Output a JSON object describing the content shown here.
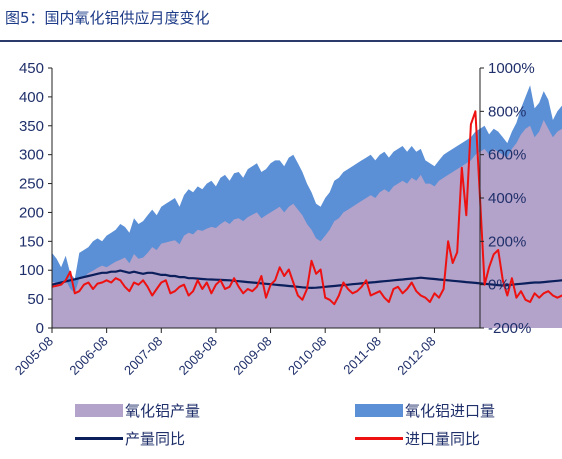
{
  "figure": {
    "title": "图5：国内氧化铝供应月度变化"
  },
  "chart_data": {
    "type": "area",
    "x_ticks": [
      "2005-08",
      "2006-08",
      "2007-08",
      "2008-08",
      "2009-08",
      "2010-08",
      "2011-08",
      "2012-08"
    ],
    "x_start": "2005-08",
    "x_end": "2013-06",
    "left_axis": {
      "ticks": [
        0,
        50,
        100,
        150,
        200,
        250,
        300,
        350,
        400,
        450
      ],
      "ylim": [
        0,
        450
      ]
    },
    "right_axis": {
      "ticks": [
        "-200%",
        "0%",
        "200%",
        "400%",
        "600%",
        "800%",
        "1000%"
      ],
      "ylim": [
        -200,
        1000
      ]
    },
    "legend_placement": "bottom",
    "grid": false,
    "series": [
      {
        "name": "氧化铝产量",
        "kind": "area",
        "axis": "left",
        "color": "#b3a2c9",
        "values": [
          80,
          78,
          79,
          84,
          68,
          60,
          86,
          88,
          95,
          99,
          104,
          108,
          105,
          110,
          115,
          118,
          122,
          112,
          128,
          120,
          122,
          130,
          140,
          135,
          146,
          148,
          150,
          152,
          145,
          160,
          165,
          162,
          170,
          168,
          172,
          175,
          173,
          180,
          185,
          180,
          188,
          190,
          185,
          192,
          196,
          200,
          190,
          195,
          200,
          205,
          210,
          200,
          210,
          215,
          205,
          195,
          180,
          170,
          155,
          150,
          160,
          170,
          185,
          190,
          200,
          205,
          210,
          215,
          220,
          225,
          230,
          225,
          235,
          240,
          235,
          245,
          250,
          255,
          250,
          260,
          255,
          265,
          250,
          250,
          245,
          255,
          260,
          265,
          270,
          275,
          280,
          285,
          290,
          300,
          305,
          310,
          300,
          310,
          305,
          300,
          295,
          310,
          320,
          335,
          345,
          350,
          330,
          340,
          360,
          345,
          330,
          340,
          345,
          355,
          350,
          360,
          370,
          375,
          380,
          375,
          385
        ]
      },
      {
        "name": "氧化铝进口量",
        "kind": "area",
        "axis": "left",
        "color": "#5b8fd6",
        "values": [
          130,
          120,
          105,
          125,
          95,
          85,
          130,
          135,
          140,
          150,
          155,
          150,
          160,
          165,
          170,
          180,
          175,
          165,
          190,
          180,
          185,
          195,
          205,
          195,
          210,
          215,
          220,
          225,
          210,
          230,
          240,
          235,
          245,
          240,
          250,
          255,
          245,
          260,
          265,
          255,
          268,
          270,
          260,
          275,
          280,
          285,
          270,
          275,
          285,
          290,
          290,
          280,
          295,
          300,
          285,
          270,
          250,
          235,
          215,
          210,
          225,
          235,
          255,
          260,
          270,
          275,
          280,
          285,
          290,
          295,
          300,
          290,
          300,
          305,
          295,
          305,
          310,
          315,
          305,
          315,
          305,
          310,
          290,
          285,
          280,
          290,
          300,
          305,
          310,
          315,
          320,
          325,
          330,
          340,
          345,
          350,
          335,
          345,
          340,
          330,
          320,
          340,
          355,
          380,
          400,
          420,
          380,
          390,
          410,
          395,
          360,
          375,
          385,
          400,
          390,
          395,
          400,
          405,
          410,
          400,
          405
        ]
      },
      {
        "name": "产量同比",
        "kind": "line",
        "axis": "right",
        "color": "#0b1f5c",
        "values": [
          0,
          5,
          10,
          15,
          20,
          25,
          30,
          35,
          40,
          45,
          50,
          55,
          55,
          60,
          60,
          65,
          60,
          55,
          60,
          55,
          50,
          55,
          55,
          50,
          45,
          45,
          40,
          40,
          35,
          35,
          30,
          30,
          28,
          26,
          25,
          24,
          23,
          22,
          21,
          20,
          18,
          16,
          14,
          12,
          10,
          8,
          6,
          4,
          2,
          0,
          -2,
          -4,
          -6,
          -8,
          -10,
          -12,
          -14,
          -15,
          -14,
          -12,
          -10,
          -8,
          -6,
          -4,
          -2,
          0,
          2,
          4,
          6,
          8,
          10,
          12,
          14,
          16,
          18,
          20,
          22,
          24,
          26,
          28,
          30,
          32,
          30,
          28,
          26,
          24,
          22,
          20,
          18,
          16,
          14,
          12,
          10,
          8,
          6,
          4,
          2,
          0,
          -2,
          -4,
          -2,
          0,
          2,
          4,
          6,
          8,
          10,
          10,
          12,
          14,
          16,
          18,
          20,
          22,
          24,
          26,
          28,
          30,
          32,
          34,
          36
        ]
      },
      {
        "name": "进口量同比",
        "kind": "line",
        "axis": "right",
        "color": "#ee1111",
        "values": [
          -10,
          -5,
          0,
          20,
          60,
          -40,
          -30,
          0,
          10,
          -20,
          5,
          10,
          20,
          10,
          30,
          20,
          -10,
          -30,
          10,
          0,
          20,
          -10,
          -50,
          -20,
          10,
          20,
          -40,
          -30,
          -10,
          0,
          -50,
          -30,
          20,
          -20,
          10,
          -40,
          0,
          20,
          -20,
          -10,
          30,
          -10,
          -40,
          -20,
          -30,
          -10,
          40,
          -60,
          0,
          20,
          80,
          40,
          70,
          10,
          -50,
          -70,
          -20,
          110,
          50,
          70,
          -60,
          -70,
          -90,
          -50,
          10,
          -20,
          -40,
          -30,
          -10,
          20,
          -50,
          -40,
          -30,
          -60,
          -80,
          -20,
          -10,
          -40,
          -20,
          10,
          -30,
          -50,
          -60,
          -80,
          -40,
          -60,
          -20,
          200,
          100,
          150,
          540,
          320,
          740,
          800,
          400,
          0,
          80,
          140,
          160,
          20,
          -50,
          30,
          -60,
          -30,
          -70,
          -80,
          -40,
          -60,
          -40,
          -30,
          -50,
          -60,
          -50,
          -40,
          -30,
          -50,
          -60,
          -40,
          -60,
          -50,
          -40
        ]
      }
    ]
  }
}
